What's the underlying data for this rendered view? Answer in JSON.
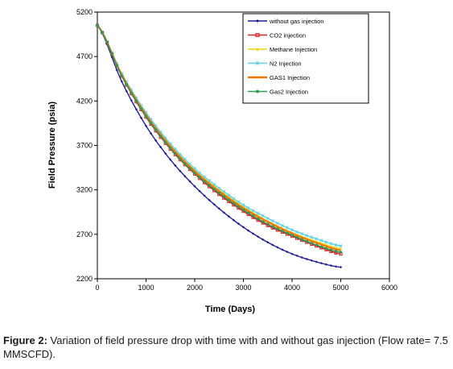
{
  "chart_data": {
    "type": "line",
    "xlabel": "Time (Days)",
    "ylabel": "Field Pressure (psia)",
    "xlim": [
      0,
      6000
    ],
    "ylim": [
      2200,
      5200
    ],
    "x_ticks": [
      "0",
      "1000",
      "2000",
      "3000",
      "4000",
      "5000",
      "6000"
    ],
    "y_ticks": [
      "2200",
      "2700",
      "3200",
      "3700",
      "4200",
      "4700",
      "5200"
    ],
    "grid": false,
    "legend_position": "top-right",
    "x": [
      0,
      500,
      1000,
      1500,
      2000,
      2500,
      3000,
      3500,
      4000,
      4500,
      5000
    ],
    "series": [
      {
        "name": "without gas injection",
        "color": "#1f1f8f",
        "marker": "diamond",
        "values": [
          5050,
          4420,
          3920,
          3540,
          3240,
          2990,
          2780,
          2610,
          2480,
          2390,
          2330
        ]
      },
      {
        "name": "CO2 injection",
        "color": "#cc2222",
        "marker": "square",
        "values": [
          5050,
          4480,
          4020,
          3660,
          3380,
          3150,
          2960,
          2800,
          2680,
          2570,
          2480
        ]
      },
      {
        "name": "Methane Injection",
        "color": "#e8d81a",
        "marker": "triangle",
        "values": [
          5050,
          4500,
          4050,
          3700,
          3420,
          3200,
          3010,
          2850,
          2720,
          2620,
          2540
        ]
      },
      {
        "name": "N2 Injection",
        "color": "#5fd0e8",
        "marker": "x",
        "values": [
          5050,
          4510,
          4070,
          3720,
          3440,
          3220,
          3030,
          2880,
          2750,
          2650,
          2570
        ]
      },
      {
        "name": "GAS1 Injection",
        "color": "#f07800",
        "marker": "none",
        "values": [
          5050,
          4495,
          4045,
          3690,
          3410,
          3185,
          2995,
          2840,
          2710,
          2605,
          2520
        ]
      },
      {
        "name": "Gas2 Injection",
        "color": "#2e9a56",
        "marker": "circle",
        "values": [
          5050,
          4485,
          4030,
          3670,
          3390,
          3165,
          2975,
          2815,
          2690,
          2580,
          2500
        ]
      }
    ]
  },
  "caption": {
    "label": "Figure 2:",
    "text": " Variation of field pressure drop with time with and without gas injection (Flow rate= 7.5 MMSCFD)."
  }
}
